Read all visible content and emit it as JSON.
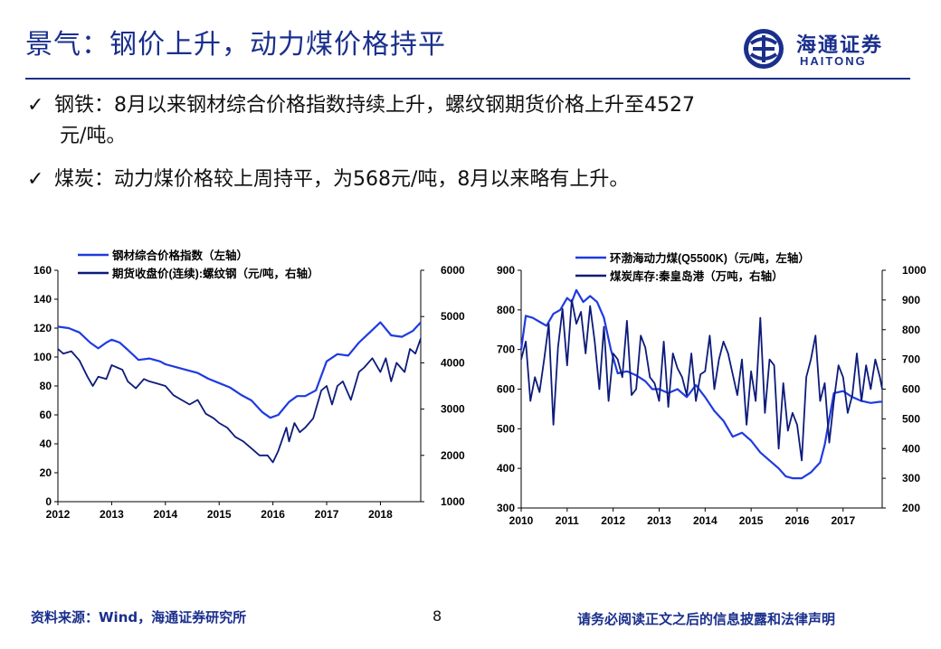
{
  "header": {
    "title": "景气：钢价上升，动力煤价格持平",
    "logo_cn": "海通证券",
    "logo_en": "HAITONG"
  },
  "bullets": [
    {
      "line1": "钢铁：8月以来钢材综合价格指数持续上升，螺纹钢期货价格上升至4527",
      "line2": "元/吨。"
    },
    {
      "line1": "煤炭：动力煤价格较上周持平，为568元/吨，8月以来略有上升。"
    }
  ],
  "footer": {
    "source": "资料来源：Wind，海通证券研究所",
    "page": "8",
    "disclaimer": "请务必阅读正文之后的信息披露和法律声明"
  },
  "colors": {
    "primary": "#1a2f8c",
    "series_light": "#1f3be0",
    "series_dark": "#0d1b7a"
  },
  "chart_data": [
    {
      "type": "line",
      "x_ticks": [
        "2012",
        "2013",
        "2014",
        "2015",
        "2016",
        "2017",
        "2018"
      ],
      "xlim": [
        2012,
        2018.75
      ],
      "ylim_left": [
        0,
        160
      ],
      "y_ticks_left": [
        "0",
        "20",
        "40",
        "60",
        "80",
        "100",
        "120",
        "140",
        "160"
      ],
      "ylim_right": [
        1000,
        6000
      ],
      "y_ticks_right": [
        "1000",
        "2000",
        "3000",
        "4000",
        "5000",
        "6000"
      ],
      "series": [
        {
          "name": "钢材综合价格指数（左轴）",
          "axis": "left",
          "color": "#1f3be0",
          "x": [
            2012.0,
            2012.2,
            2012.4,
            2012.6,
            2012.75,
            2012.9,
            2013.0,
            2013.15,
            2013.3,
            2013.5,
            2013.7,
            2013.9,
            2014.0,
            2014.2,
            2014.4,
            2014.6,
            2014.8,
            2015.0,
            2015.2,
            2015.4,
            2015.6,
            2015.8,
            2015.95,
            2016.1,
            2016.3,
            2016.45,
            2016.6,
            2016.8,
            2017.0,
            2017.2,
            2017.4,
            2017.6,
            2017.8,
            2018.0,
            2018.2,
            2018.4,
            2018.6,
            2018.75
          ],
          "y": [
            121,
            120,
            117,
            110,
            106,
            110,
            112,
            110,
            105,
            98,
            99,
            97,
            95,
            93,
            91,
            89,
            85,
            82,
            79,
            74,
            70,
            62,
            58,
            60,
            69,
            73,
            73,
            77,
            97,
            102,
            101,
            110,
            117,
            124,
            115,
            114,
            118,
            124
          ]
        },
        {
          "name": "期货收盘价(连续):螺纹钢（元/吨，右轴）",
          "axis": "right",
          "color": "#0d1b7a",
          "x": [
            2012.0,
            2012.1,
            2012.25,
            2012.4,
            2012.55,
            2012.65,
            2012.75,
            2012.9,
            2013.0,
            2013.1,
            2013.2,
            2013.3,
            2013.45,
            2013.6,
            2013.7,
            2013.85,
            2014.0,
            2014.15,
            2014.3,
            2014.45,
            2014.6,
            2014.75,
            2014.9,
            2015.0,
            2015.15,
            2015.3,
            2015.45,
            2015.6,
            2015.75,
            2015.9,
            2016.0,
            2016.1,
            2016.25,
            2016.3,
            2016.4,
            2016.5,
            2016.6,
            2016.75,
            2016.9,
            2017.0,
            2017.1,
            2017.2,
            2017.3,
            2017.45,
            2017.6,
            2017.7,
            2017.85,
            2018.0,
            2018.1,
            2018.2,
            2018.3,
            2018.45,
            2018.55,
            2018.65,
            2018.75
          ],
          "y": [
            4300,
            4200,
            4250,
            4050,
            3700,
            3500,
            3700,
            3650,
            3950,
            3900,
            3850,
            3600,
            3450,
            3650,
            3600,
            3550,
            3500,
            3300,
            3200,
            3100,
            3200,
            2900,
            2800,
            2700,
            2600,
            2400,
            2300,
            2150,
            2000,
            2000,
            1850,
            2100,
            2600,
            2300,
            2700,
            2500,
            2600,
            2800,
            3400,
            3500,
            3100,
            3500,
            3600,
            3200,
            3800,
            3900,
            4100,
            3800,
            4100,
            3600,
            4000,
            3800,
            4300,
            4200,
            4527
          ]
        }
      ]
    },
    {
      "type": "line",
      "x_ticks": [
        "2010",
        "2011",
        "2012",
        "2013",
        "2014",
        "2015",
        "2016",
        "2017"
      ],
      "xlim": [
        2010,
        2017.85
      ],
      "ylim_left": [
        300,
        900
      ],
      "y_ticks_left": [
        "300",
        "400",
        "500",
        "600",
        "700",
        "800",
        "900"
      ],
      "ylim_right": [
        200,
        1000
      ],
      "y_ticks_right": [
        "200",
        "300",
        "400",
        "500",
        "600",
        "700",
        "800",
        "900",
        "1000"
      ],
      "series": [
        {
          "name": "环渤海动力煤(Q5500K)（元/吨，左轴）",
          "axis": "left",
          "color": "#1f3be0",
          "x": [
            2010.0,
            2010.1,
            2010.25,
            2010.4,
            2010.55,
            2010.7,
            2010.85,
            2011.0,
            2011.1,
            2011.2,
            2011.35,
            2011.5,
            2011.65,
            2011.8,
            2011.95,
            2012.1,
            2012.3,
            2012.5,
            2012.7,
            2012.85,
            2013.0,
            2013.2,
            2013.4,
            2013.6,
            2013.8,
            2014.0,
            2014.2,
            2014.4,
            2014.6,
            2014.8,
            2015.0,
            2015.2,
            2015.4,
            2015.6,
            2015.75,
            2015.9,
            2016.1,
            2016.3,
            2016.5,
            2016.6,
            2016.8,
            2017.0,
            2017.2,
            2017.4,
            2017.6,
            2017.8,
            2017.85
          ],
          "y": [
            700,
            785,
            780,
            770,
            760,
            790,
            800,
            830,
            820,
            850,
            820,
            835,
            820,
            780,
            700,
            640,
            645,
            635,
            620,
            600,
            600,
            590,
            600,
            580,
            610,
            580,
            545,
            520,
            480,
            490,
            470,
            440,
            420,
            400,
            380,
            375,
            375,
            390,
            415,
            460,
            590,
            595,
            580,
            570,
            565,
            568,
            568
          ]
        },
        {
          "name": "煤炭库存:秦皇岛港（万吨，右轴）",
          "axis": "right",
          "color": "#0d1b7a",
          "x": [
            2010.0,
            2010.1,
            2010.2,
            2010.3,
            2010.4,
            2010.5,
            2010.6,
            2010.7,
            2010.8,
            2010.9,
            2011.0,
            2011.1,
            2011.2,
            2011.3,
            2011.4,
            2011.5,
            2011.6,
            2011.7,
            2011.8,
            2011.9,
            2012.0,
            2012.1,
            2012.2,
            2012.3,
            2012.4,
            2012.5,
            2012.6,
            2012.7,
            2012.8,
            2012.9,
            2013.0,
            2013.1,
            2013.2,
            2013.3,
            2013.4,
            2013.5,
            2013.6,
            2013.7,
            2013.8,
            2013.9,
            2014.0,
            2014.1,
            2014.2,
            2014.3,
            2014.4,
            2014.5,
            2014.6,
            2014.7,
            2014.8,
            2014.9,
            2015.0,
            2015.1,
            2015.2,
            2015.3,
            2015.4,
            2015.5,
            2015.6,
            2015.7,
            2015.8,
            2015.9,
            2016.0,
            2016.1,
            2016.2,
            2016.3,
            2016.4,
            2016.5,
            2016.6,
            2016.7,
            2016.8,
            2016.9,
            2017.0,
            2017.1,
            2017.2,
            2017.3,
            2017.4,
            2017.5,
            2017.6,
            2017.7,
            2017.8,
            2017.85
          ],
          "y": [
            700,
            760,
            560,
            640,
            590,
            700,
            820,
            480,
            740,
            870,
            680,
            900,
            820,
            860,
            720,
            880,
            760,
            600,
            810,
            560,
            720,
            700,
            640,
            830,
            580,
            600,
            780,
            740,
            640,
            620,
            560,
            760,
            540,
            720,
            670,
            640,
            580,
            720,
            560,
            650,
            660,
            780,
            600,
            700,
            760,
            720,
            650,
            580,
            700,
            480,
            660,
            560,
            840,
            520,
            700,
            680,
            400,
            620,
            460,
            520,
            480,
            360,
            640,
            700,
            780,
            560,
            620,
            420,
            560,
            680,
            640,
            520,
            580,
            720,
            560,
            680,
            600,
            700,
            640,
            600
          ]
        }
      ]
    }
  ]
}
